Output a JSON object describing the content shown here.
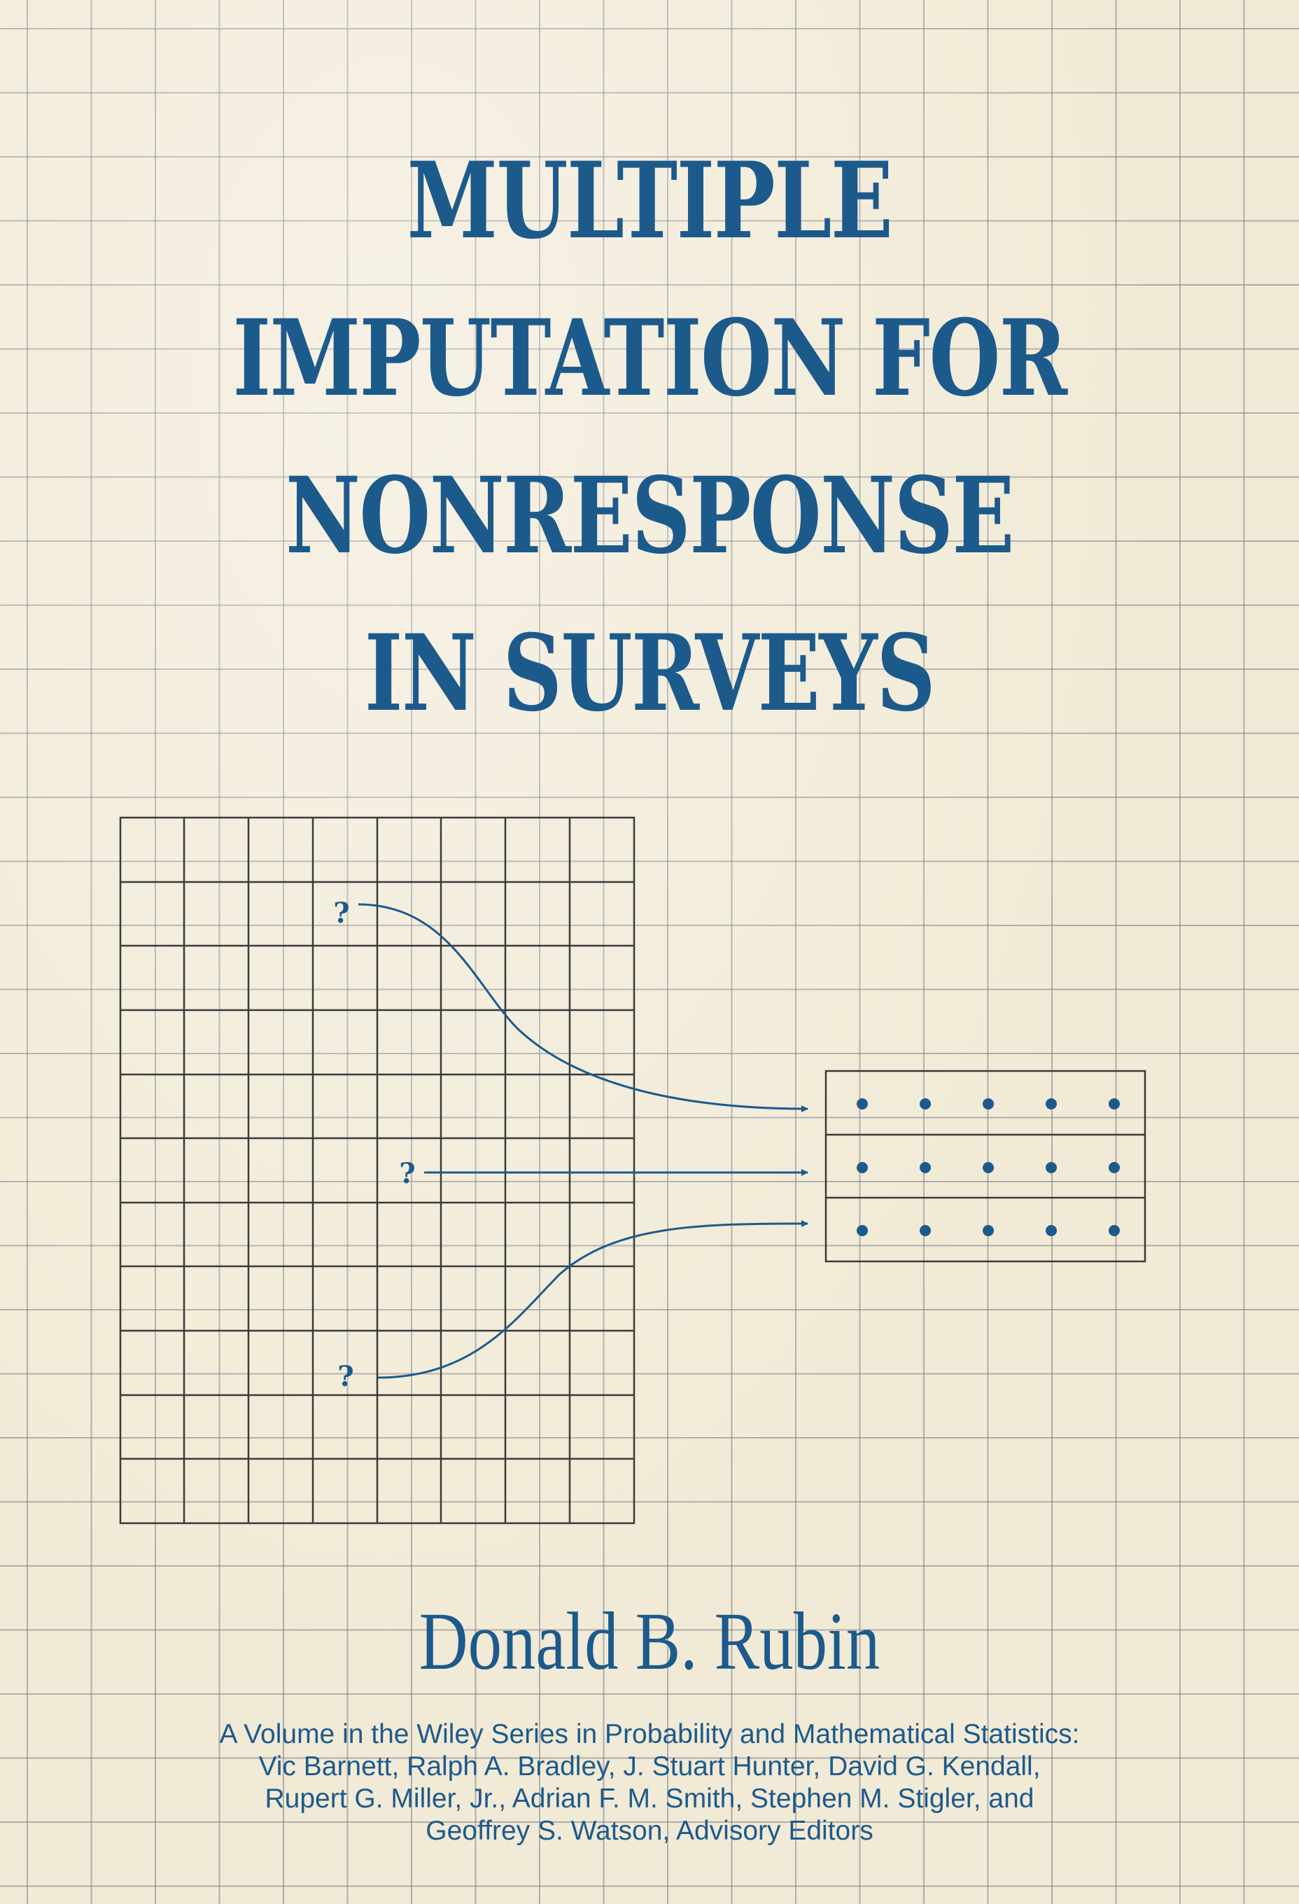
{
  "cover": {
    "title_lines": [
      "MULTIPLE",
      "IMPUTATION FOR",
      "NONRESPONSE",
      "IN SURVEYS"
    ],
    "author": "Donald B. Rubin",
    "series_lines": [
      "A Volume in the Wiley Series in Probability and Mathematical Statistics:",
      "Vic Barnett, Ralph A. Bradley, J. Stuart Hunter, David G. Kendall,",
      "Rupert G. Miller, Jr.,  Adrian F. M. Smith, Stephen M. Stigler, and",
      "Geoffrey S. Watson, Advisory Editors"
    ],
    "diagram_marks": [
      "?",
      "?",
      "?"
    ],
    "colors": {
      "ink_blue": "#1d5a8c",
      "paper": "#f1ead6",
      "grid": "#8a8a96",
      "diagram_line": "#444444"
    }
  }
}
